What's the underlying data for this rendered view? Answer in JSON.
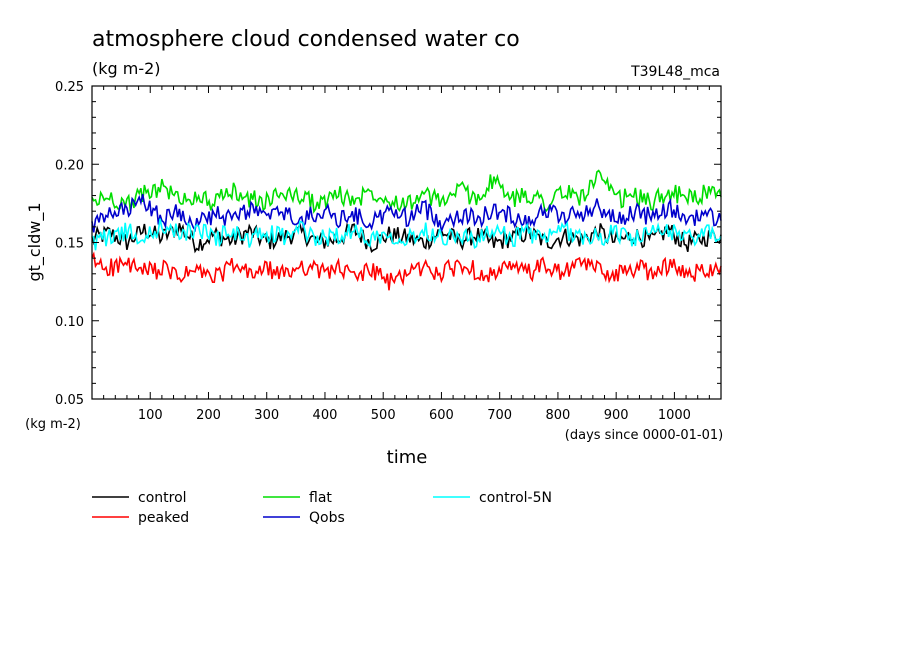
{
  "chart_data": {
    "type": "line",
    "title": "atmosphere cloud condensed water co",
    "subtitle": "(kg m-2)",
    "run_label": "T39L48_mca",
    "xlabel": "time",
    "x_units": "(days since 0000-01-01)",
    "ylabel": "gt_cldw_1",
    "y_units": "(kg m-2)",
    "xlim": [
      0,
      1080
    ],
    "ylim": [
      0.05,
      0.25
    ],
    "x_ticks": [
      100,
      200,
      300,
      400,
      500,
      600,
      700,
      800,
      900,
      1000
    ],
    "y_ticks": [
      "0.05",
      "0.10",
      "0.15",
      "0.20",
      "0.25"
    ],
    "grid": false,
    "legend_position": "bottom",
    "series": [
      {
        "name": "control",
        "color": "#000000",
        "x": [
          0,
          30,
          60,
          90,
          120,
          150,
          180,
          210,
          240,
          270,
          300,
          330,
          360,
          390,
          420,
          450,
          480,
          510,
          540,
          570,
          600,
          630,
          660,
          690,
          720,
          750,
          780,
          810,
          840,
          870,
          900,
          930,
          960,
          990,
          1020,
          1050,
          1080
        ],
        "values": [
          0.152,
          0.156,
          0.15,
          0.158,
          0.153,
          0.16,
          0.149,
          0.155,
          0.151,
          0.157,
          0.15,
          0.154,
          0.156,
          0.15,
          0.152,
          0.158,
          0.149,
          0.155,
          0.153,
          0.15,
          0.157,
          0.151,
          0.155,
          0.149,
          0.153,
          0.156,
          0.15,
          0.154,
          0.152,
          0.157,
          0.15,
          0.155,
          0.151,
          0.158,
          0.149,
          0.153,
          0.155
        ]
      },
      {
        "name": "peaked",
        "color": "#ff0000",
        "x": [
          0,
          30,
          60,
          90,
          120,
          150,
          180,
          210,
          240,
          270,
          300,
          330,
          360,
          390,
          420,
          450,
          480,
          510,
          540,
          570,
          600,
          630,
          660,
          690,
          720,
          750,
          780,
          810,
          840,
          870,
          900,
          930,
          960,
          990,
          1020,
          1050,
          1080
        ],
        "values": [
          0.138,
          0.134,
          0.136,
          0.131,
          0.133,
          0.128,
          0.132,
          0.127,
          0.135,
          0.13,
          0.133,
          0.129,
          0.136,
          0.131,
          0.134,
          0.128,
          0.133,
          0.124,
          0.131,
          0.134,
          0.13,
          0.136,
          0.132,
          0.129,
          0.134,
          0.131,
          0.135,
          0.13,
          0.137,
          0.133,
          0.129,
          0.134,
          0.131,
          0.136,
          0.129,
          0.133,
          0.135
        ]
      },
      {
        "name": "flat",
        "color": "#00dd00",
        "x": [
          0,
          30,
          60,
          90,
          120,
          150,
          180,
          210,
          240,
          270,
          300,
          330,
          360,
          390,
          420,
          450,
          480,
          510,
          540,
          570,
          600,
          630,
          660,
          690,
          720,
          750,
          780,
          810,
          840,
          870,
          900,
          930,
          960,
          990,
          1020,
          1050,
          1080
        ],
        "values": [
          0.176,
          0.179,
          0.174,
          0.181,
          0.186,
          0.177,
          0.18,
          0.175,
          0.183,
          0.178,
          0.176,
          0.182,
          0.179,
          0.174,
          0.181,
          0.177,
          0.183,
          0.178,
          0.175,
          0.18,
          0.176,
          0.184,
          0.178,
          0.19,
          0.177,
          0.181,
          0.176,
          0.182,
          0.179,
          0.192,
          0.177,
          0.18,
          0.175,
          0.183,
          0.178,
          0.181,
          0.179
        ]
      },
      {
        "name": "Qobs",
        "color": "#0000cc",
        "x": [
          0,
          30,
          60,
          90,
          120,
          150,
          180,
          210,
          240,
          270,
          300,
          330,
          360,
          390,
          420,
          450,
          480,
          510,
          540,
          570,
          600,
          630,
          660,
          690,
          720,
          750,
          780,
          810,
          840,
          870,
          900,
          930,
          960,
          990,
          1020,
          1050,
          1080
        ],
        "values": [
          0.16,
          0.167,
          0.171,
          0.176,
          0.165,
          0.17,
          0.162,
          0.168,
          0.164,
          0.172,
          0.166,
          0.169,
          0.163,
          0.171,
          0.165,
          0.168,
          0.162,
          0.17,
          0.166,
          0.172,
          0.163,
          0.168,
          0.165,
          0.17,
          0.167,
          0.164,
          0.171,
          0.166,
          0.169,
          0.173,
          0.164,
          0.17,
          0.166,
          0.172,
          0.165,
          0.168,
          0.164
        ]
      },
      {
        "name": "control-5N",
        "color": "#00ffff",
        "x": [
          0,
          30,
          60,
          90,
          120,
          150,
          180,
          210,
          240,
          270,
          300,
          330,
          360,
          390,
          420,
          450,
          480,
          510,
          540,
          570,
          600,
          630,
          660,
          690,
          720,
          750,
          780,
          810,
          840,
          870,
          900,
          930,
          960,
          990,
          1020,
          1050,
          1080
        ],
        "values": [
          0.15,
          0.154,
          0.157,
          0.152,
          0.161,
          0.155,
          0.159,
          0.153,
          0.157,
          0.151,
          0.156,
          0.154,
          0.158,
          0.152,
          0.155,
          0.157,
          0.153,
          0.156,
          0.152,
          0.158,
          0.154,
          0.155,
          0.151,
          0.157,
          0.153,
          0.156,
          0.152,
          0.158,
          0.154,
          0.153,
          0.157,
          0.152,
          0.155,
          0.158,
          0.153,
          0.156,
          0.154
        ]
      }
    ]
  }
}
